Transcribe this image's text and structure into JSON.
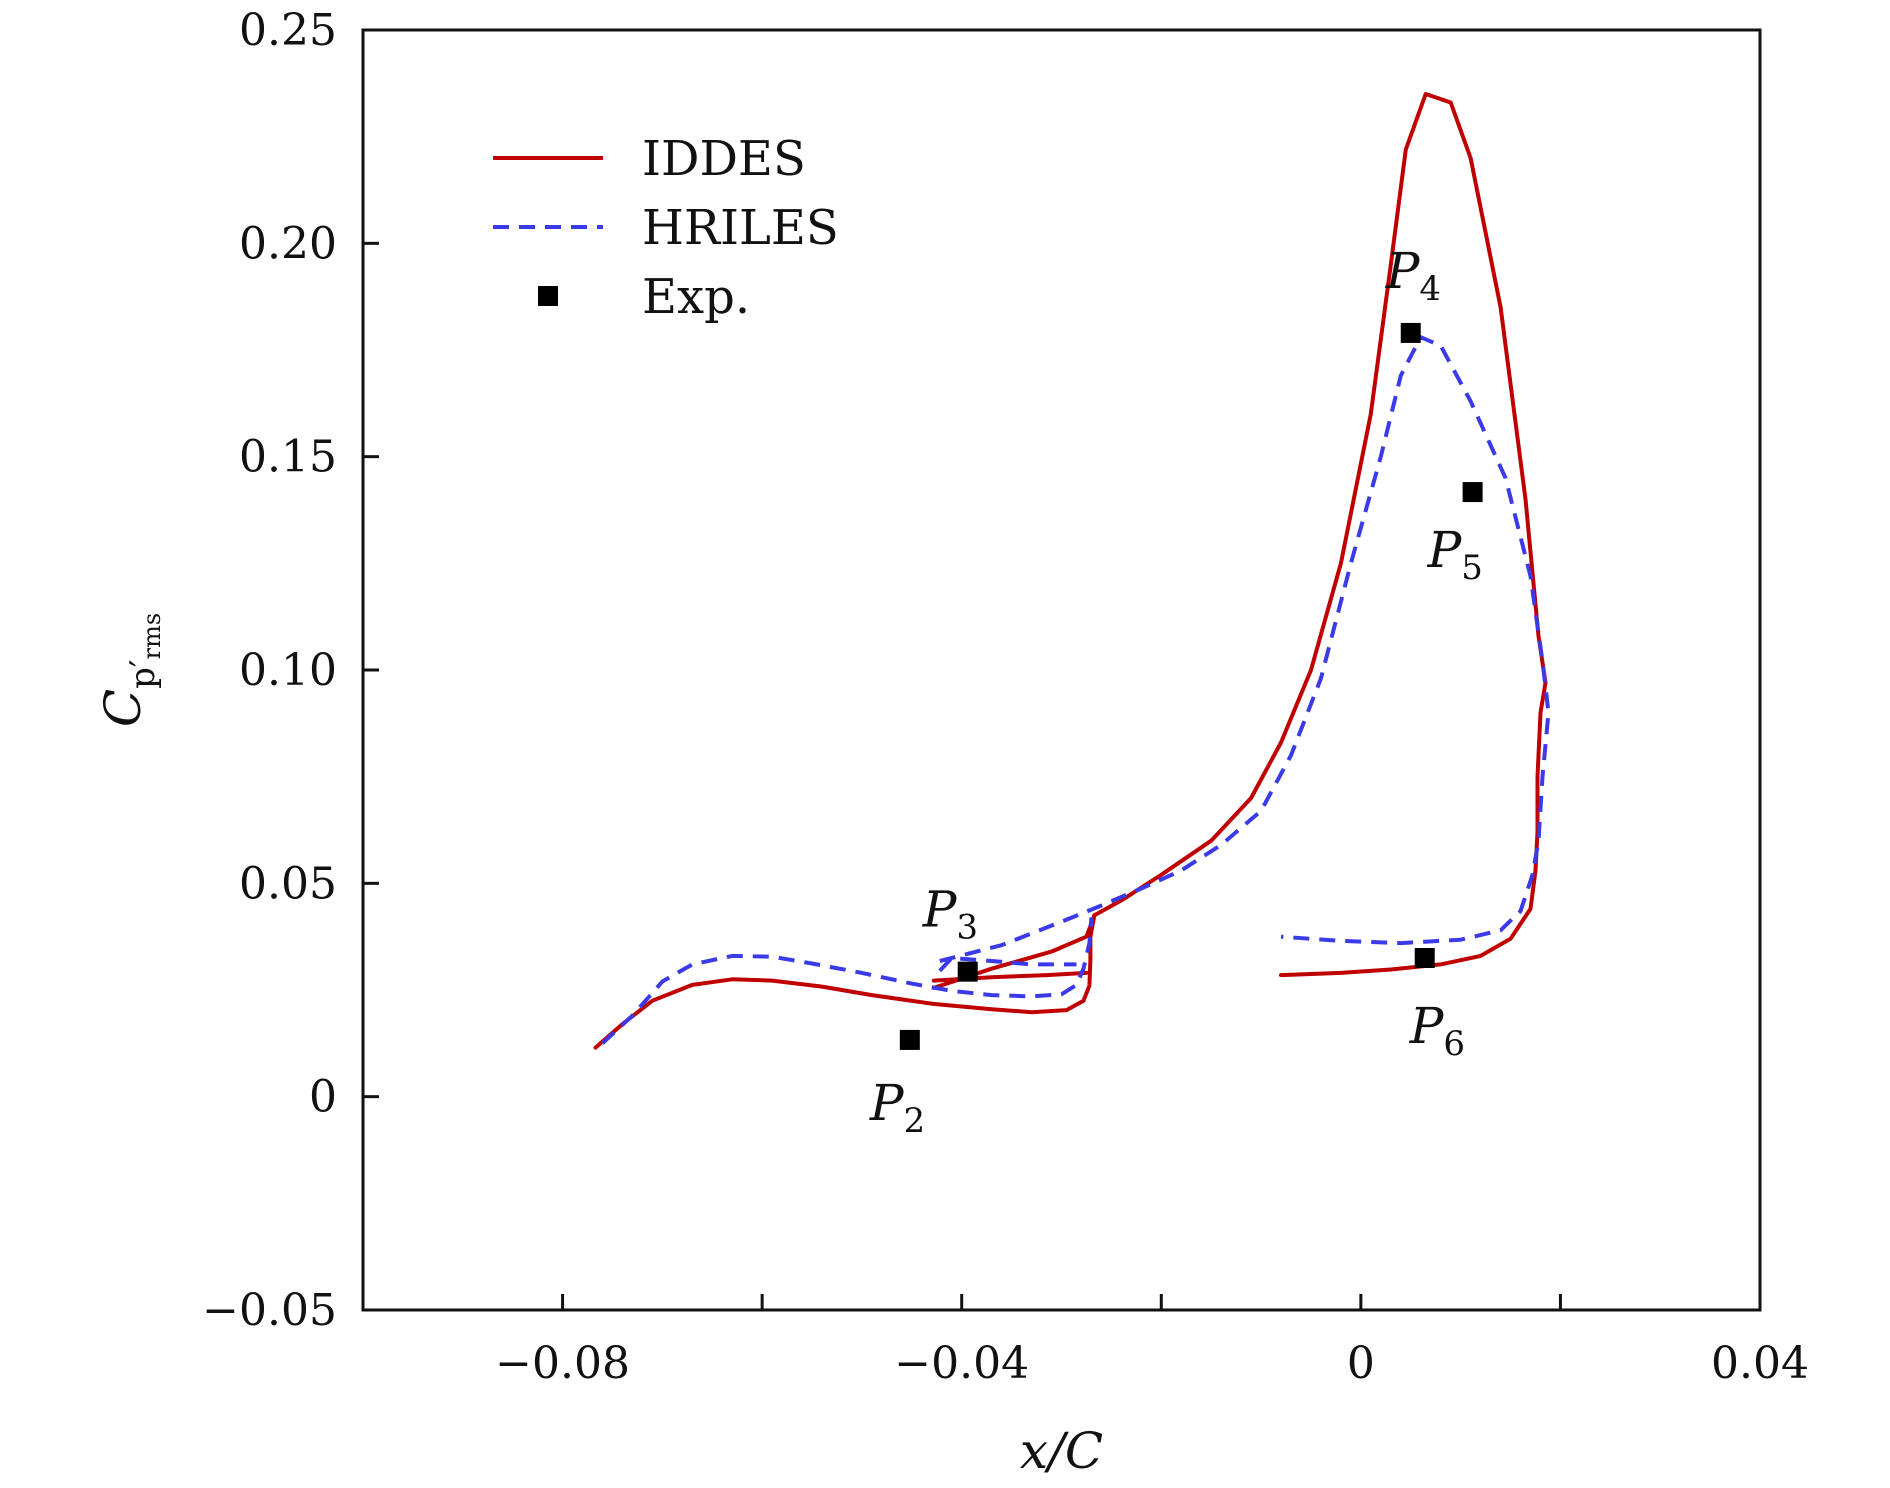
{
  "chart_data": {
    "type": "line",
    "xlabel": "x/C",
    "ylabel": {
      "main": "C",
      "sub": "p′",
      "subsub": "rms"
    },
    "xlim": [
      -0.1,
      0.04
    ],
    "ylim": [
      -0.05,
      0.25
    ],
    "x_ticks": [
      -0.08,
      -0.04,
      0,
      0.04
    ],
    "x_tick_labels": [
      "−0.08",
      "−0.04",
      "0",
      "0.04"
    ],
    "x_minor_ticks": [
      -0.06,
      -0.02,
      0.02
    ],
    "y_ticks": [
      -0.05,
      0,
      0.05,
      0.1,
      0.15,
      0.2,
      0.25
    ],
    "y_tick_labels": [
      "−0.05",
      "0",
      "0.05",
      "0.10",
      "0.15",
      "0.20",
      "0.25"
    ],
    "legend_position": "upper-left",
    "series": [
      {
        "name": "IDDES",
        "style": "solid",
        "color": "#c00000",
        "segments": [
          [
            [
              -0.0767,
              0.0115
            ],
            [
              -0.074,
              0.017
            ],
            [
              -0.071,
              0.0225
            ],
            [
              -0.067,
              0.0262
            ],
            [
              -0.063,
              0.0275
            ],
            [
              -0.059,
              0.0272
            ],
            [
              -0.054,
              0.0258
            ],
            [
              -0.049,
              0.0238
            ],
            [
              -0.043,
              0.0218
            ],
            [
              -0.037,
              0.0205
            ],
            [
              -0.033,
              0.0198
            ],
            [
              -0.0295,
              0.0203
            ],
            [
              -0.0278,
              0.0225
            ],
            [
              -0.0272,
              0.026
            ],
            [
              -0.0271,
              0.032
            ],
            [
              -0.0271,
              0.0375
            ],
            [
              -0.0267,
              0.0425
            ]
          ],
          [
            [
              -0.0267,
              0.0425
            ],
            [
              -0.0275,
              0.0375
            ],
            [
              -0.031,
              0.034
            ],
            [
              -0.037,
              0.03
            ],
            [
              -0.0428,
              0.0255
            ]
          ],
          [
            [
              -0.0428,
              0.0272
            ],
            [
              -0.037,
              0.028
            ],
            [
              -0.0315,
              0.0285
            ],
            [
              -0.0275,
              0.029
            ]
          ],
          [
            [
              -0.0267,
              0.0425
            ],
            [
              -0.024,
              0.046
            ],
            [
              -0.02,
              0.052
            ],
            [
              -0.015,
              0.06
            ],
            [
              -0.011,
              0.07
            ],
            [
              -0.008,
              0.083
            ],
            [
              -0.005,
              0.1
            ],
            [
              -0.002,
              0.125
            ],
            [
              0.001,
              0.16
            ],
            [
              0.003,
              0.195
            ],
            [
              0.0045,
              0.222
            ],
            [
              0.0065,
              0.235
            ],
            [
              0.009,
              0.233
            ],
            [
              0.011,
              0.22
            ],
            [
              0.014,
              0.185
            ],
            [
              0.0165,
              0.14
            ],
            [
              0.0178,
              0.108
            ],
            [
              0.0185,
              0.097
            ]
          ],
          [
            [
              0.0185,
              0.097
            ],
            [
              0.018,
              0.09
            ],
            [
              0.0177,
              0.075
            ],
            [
              0.0177,
              0.062
            ],
            [
              0.0175,
              0.053
            ],
            [
              0.017,
              0.044
            ],
            [
              0.015,
              0.037
            ],
            [
              0.012,
              0.033
            ],
            [
              0.008,
              0.031
            ],
            [
              0.003,
              0.0298
            ],
            [
              -0.002,
              0.029
            ],
            [
              -0.008,
              0.0285
            ]
          ]
        ]
      },
      {
        "name": "HRILES",
        "style": "dashed",
        "color": "#3a3ae8",
        "segments": [
          [
            [
              -0.076,
              0.0125
            ],
            [
              -0.073,
              0.019
            ],
            [
              -0.07,
              0.027
            ],
            [
              -0.067,
              0.031
            ],
            [
              -0.063,
              0.033
            ],
            [
              -0.059,
              0.0328
            ],
            [
              -0.055,
              0.0312
            ],
            [
              -0.05,
              0.029
            ],
            [
              -0.045,
              0.0265
            ],
            [
              -0.041,
              0.0248
            ],
            [
              -0.037,
              0.0238
            ],
            [
              -0.033,
              0.0235
            ],
            [
              -0.03,
              0.024
            ],
            [
              -0.0285,
              0.0262
            ],
            [
              -0.0278,
              0.03
            ],
            [
              -0.0272,
              0.036
            ],
            [
              -0.027,
              0.042
            ]
          ],
          [
            [
              -0.0422,
              0.0295
            ],
            [
              -0.041,
              0.0325
            ],
            [
              -0.037,
              0.0318
            ],
            [
              -0.033,
              0.031
            ],
            [
              -0.0285,
              0.031
            ]
          ],
          [
            [
              -0.0422,
              0.0318
            ],
            [
              -0.036,
              0.0355
            ],
            [
              -0.03,
              0.041
            ],
            [
              -0.026,
              0.0448
            ],
            [
              -0.022,
              0.0488
            ],
            [
              -0.018,
              0.053
            ],
            [
              -0.014,
              0.059
            ],
            [
              -0.01,
              0.067
            ],
            [
              -0.007,
              0.08
            ],
            [
              -0.004,
              0.098
            ],
            [
              -0.001,
              0.125
            ],
            [
              0.002,
              0.15
            ],
            [
              0.004,
              0.169
            ],
            [
              0.006,
              0.178
            ],
            [
              0.008,
              0.176
            ],
            [
              0.011,
              0.163
            ],
            [
              0.0145,
              0.145
            ],
            [
              0.017,
              0.122
            ],
            [
              0.0182,
              0.102
            ],
            [
              0.0188,
              0.09
            ],
            [
              0.0182,
              0.075
            ],
            [
              0.0178,
              0.06
            ],
            [
              0.0172,
              0.052
            ],
            [
              0.016,
              0.0435
            ],
            [
              0.014,
              0.039
            ],
            [
              0.01,
              0.0368
            ],
            [
              0.004,
              0.036
            ],
            [
              -0.002,
              0.0365
            ],
            [
              -0.008,
              0.0375
            ]
          ]
        ]
      },
      {
        "name": "Exp.",
        "style": "markers",
        "marker": "square",
        "color": "#000000",
        "points": [
          [
            -0.0452,
            0.0133
          ],
          [
            -0.0394,
            0.0293
          ],
          [
            0.005,
            0.179
          ],
          [
            0.0112,
            0.1417
          ],
          [
            0.0064,
            0.0325
          ]
        ]
      }
    ],
    "annotations": [
      {
        "text": "P",
        "sub": "2"
      },
      {
        "text": "P",
        "sub": "3"
      },
      {
        "text": "P",
        "sub": "4"
      },
      {
        "text": "P",
        "sub": "5"
      },
      {
        "text": "P",
        "sub": "6"
      }
    ]
  }
}
